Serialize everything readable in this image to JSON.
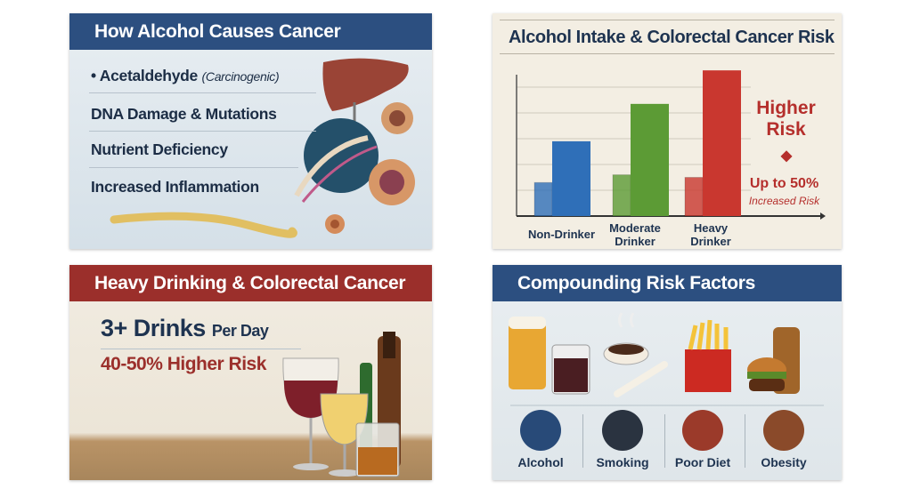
{
  "panel1": {
    "title": "How Alcohol Causes Cancer",
    "items": [
      {
        "main": "Acetaldehyde",
        "note": "(Carcinogenic)"
      },
      {
        "main": "DNA Damage & Mutations"
      },
      {
        "main": "Nutrient Deficiency"
      },
      {
        "main": "Increased Inflammation"
      }
    ]
  },
  "panel2": {
    "title": "Alcohol Intake & Colorectal Cancer Risk",
    "annotation": {
      "line1": "Higher",
      "line2": "Risk",
      "line3": "Up to 50%",
      "line4": "Increased Risk"
    }
  },
  "chart_data": {
    "type": "bar",
    "title": "Alcohol Intake & Colorectal Cancer Risk",
    "categories": [
      "Non-Drinker",
      "Moderate Drinker",
      "Heavy Drinker"
    ],
    "category_lines": [
      [
        "Non-Drinker"
      ],
      [
        "Moderate",
        "Drinker"
      ],
      [
        "Heavy",
        "Drinker"
      ]
    ],
    "series": [
      {
        "values": [
          1.3,
          1.6,
          1.5
        ]
      },
      {
        "values": [
          2.9,
          4.35,
          5.65
        ]
      }
    ],
    "colors": [
      "#2f6fb8",
      "#5c9b35",
      "#c9372f"
    ],
    "ylim": [
      0,
      6
    ],
    "grid": true,
    "xlabel": "",
    "ylabel": ""
  },
  "panel3": {
    "title": "Heavy Drinking & Colorectal Cancer",
    "line1_big": "3+ Drinks",
    "line1_small": "Per Day",
    "line2": "40-50% Higher Risk"
  },
  "panel4": {
    "title": "Compounding Risk Factors",
    "factors": [
      {
        "label": "Alcohol",
        "icon": "wine-glass-icon",
        "color": "#284a78"
      },
      {
        "label": "Smoking",
        "icon": "cigarette-icon",
        "color": "#2a3340"
      },
      {
        "label": "Poor Diet",
        "icon": "burger-icon",
        "color": "#9b3a2a"
      },
      {
        "label": "Obesity",
        "icon": "obese-figure-icon",
        "color": "#8a4a2a"
      }
    ]
  }
}
